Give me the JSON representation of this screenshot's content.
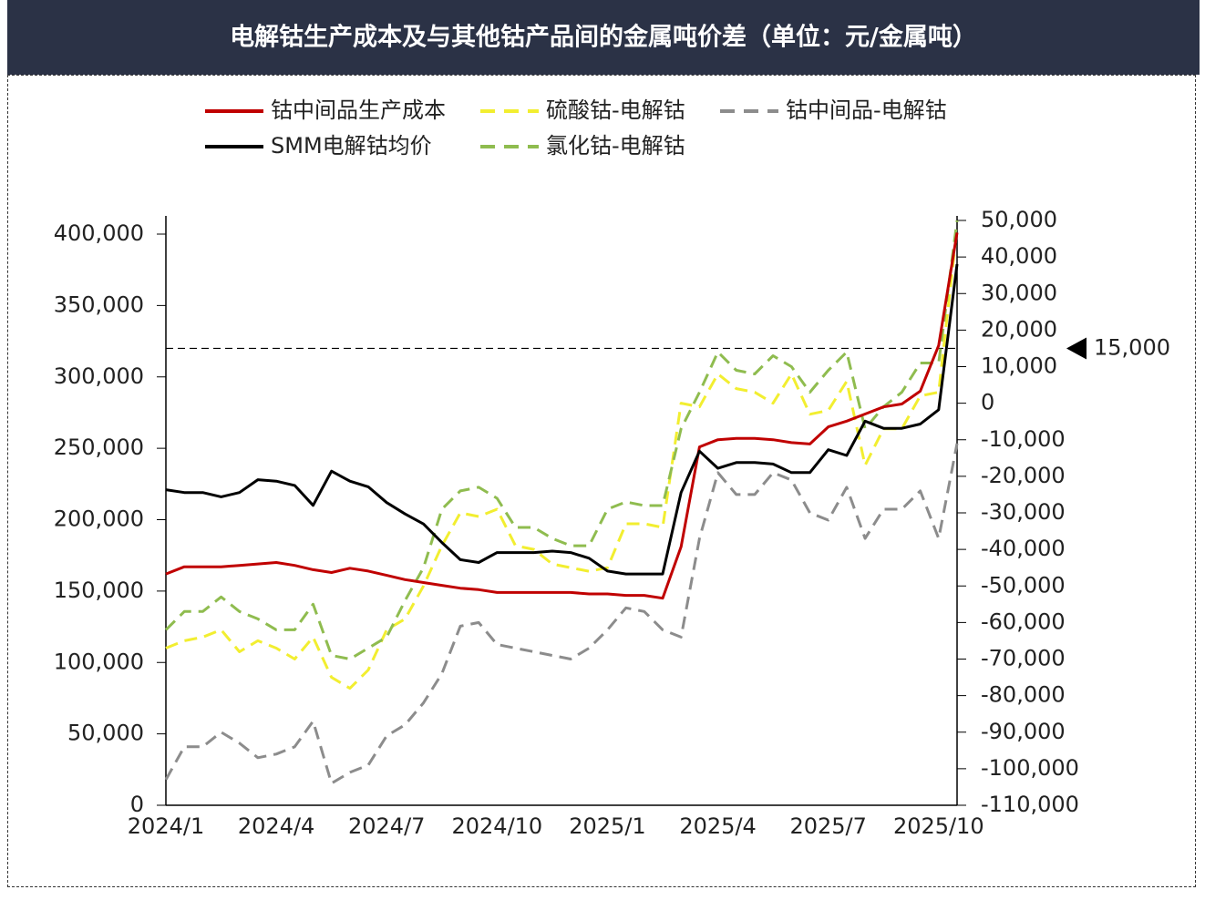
{
  "chart_data": {
    "type": "line",
    "title": "电解钴生产成本及与其他钴产品间的金属吨价差（单位：元/金属吨）",
    "categories": [
      "2024/1",
      null,
      null,
      null,
      null,
      null,
      "2024/4",
      null,
      null,
      null,
      null,
      null,
      "2024/7",
      null,
      null,
      null,
      null,
      null,
      "2024/10",
      null,
      null,
      null,
      null,
      null,
      "2025/1",
      null,
      null,
      null,
      null,
      null,
      "2025/4",
      null,
      null,
      null,
      null,
      null,
      "2025/7",
      null,
      null,
      null,
      null,
      null,
      "2025/10",
      null
    ],
    "series": [
      {
        "name": "钴中间品生产成本",
        "color": "#c00000",
        "dash": false,
        "axis": "y",
        "values": [
          162000,
          167000,
          167000,
          167000,
          168000,
          169000,
          170000,
          168000,
          165000,
          163000,
          166000,
          164000,
          161000,
          158000,
          156000,
          154000,
          152000,
          151000,
          149000,
          149000,
          149000,
          149000,
          149000,
          148000,
          148000,
          147000,
          147000,
          145000,
          181000,
          251000,
          256000,
          257000,
          257000,
          256000,
          254000,
          253000,
          265000,
          269000,
          274000,
          279000,
          281000,
          290000,
          322000,
          401000
        ]
      },
      {
        "name": "硫酸钴-电解钴",
        "color": "#f2ee30",
        "dash": true,
        "axis": "y2",
        "values": [
          -67000,
          -65000,
          -64000,
          -62000,
          -68000,
          -65000,
          -67000,
          -70000,
          -64000,
          -75000,
          -78000,
          -73000,
          -62000,
          -59000,
          -50000,
          -39000,
          -30000,
          -31000,
          -29000,
          -39000,
          -40000,
          -44000,
          -45000,
          -46000,
          -45000,
          -33000,
          -33000,
          -34000,
          0,
          -1000,
          8000,
          4000,
          3000,
          0,
          8000,
          -3000,
          -2000,
          6000,
          -17000,
          -7000,
          -7000,
          2000,
          3000,
          48000
        ]
      },
      {
        "name": "钴中间品-电解钴",
        "color": "#8c8c8c",
        "dash": true,
        "axis": "y2",
        "values": [
          -103000,
          -94000,
          -94000,
          -90000,
          -93000,
          -97000,
          -96000,
          -94000,
          -87000,
          -104000,
          -101000,
          -99000,
          -91000,
          -88000,
          -82000,
          -74000,
          -61000,
          -60000,
          -66000,
          -67000,
          -68000,
          -69000,
          -70000,
          -67000,
          -62000,
          -56000,
          -57000,
          -62000,
          -64000,
          -37000,
          -19000,
          -25000,
          -25000,
          -19000,
          -21000,
          -30000,
          -32000,
          -23000,
          -37000,
          -29000,
          -29000,
          -24000,
          -37000,
          -11000
        ]
      },
      {
        "name": "SMM电解钴均价",
        "color": "#000000",
        "dash": false,
        "axis": "y",
        "values": [
          221000,
          219000,
          219000,
          216000,
          219000,
          228000,
          227000,
          224000,
          210000,
          234000,
          227000,
          223000,
          212000,
          204000,
          197000,
          184000,
          172000,
          170000,
          177000,
          177000,
          177000,
          178000,
          177000,
          173000,
          164000,
          162000,
          162000,
          162000,
          219000,
          248000,
          236000,
          240000,
          240000,
          239000,
          233000,
          233000,
          249000,
          245000,
          269000,
          264000,
          264000,
          267000,
          277000,
          379000
        ]
      },
      {
        "name": "氯化钴-电解钴",
        "color": "#8fbc4f",
        "dash": true,
        "axis": "y2",
        "values": [
          -62000,
          -57000,
          -57000,
          -53000,
          -57000,
          -59000,
          -62000,
          -62000,
          -55000,
          -69000,
          -70000,
          -67000,
          -64000,
          -54000,
          -45000,
          -29000,
          -24000,
          -23000,
          -26000,
          -34000,
          -34000,
          -37000,
          -39000,
          -39000,
          -29000,
          -27000,
          -28000,
          -28000,
          -7000,
          3000,
          14000,
          9000,
          8000,
          13000,
          10000,
          3000,
          9000,
          14000,
          -7000,
          -1000,
          3000,
          11000,
          11000,
          50000
        ]
      }
    ],
    "ylim": [
      0,
      400000
    ],
    "yticks": [
      0,
      {
        "value": 50000,
        "label": "50,000"
      },
      {
        "value": 100000,
        "label": "100,000"
      },
      {
        "value": 150000,
        "label": "150,000"
      },
      {
        "value": 200000,
        "label": "200,000"
      },
      {
        "value": 250000,
        "label": "250,000"
      },
      {
        "value": 300000,
        "label": "300,000"
      },
      {
        "value": 350000,
        "label": "350,000"
      },
      {
        "value": 400000,
        "label": "400,000"
      }
    ],
    "y2lim": [
      -110000,
      50000
    ],
    "y2ticks": [
      {
        "value": 50000,
        "label": "50,000"
      },
      {
        "value": 40000,
        "label": "40,000"
      },
      {
        "value": 30000,
        "label": "30,000"
      },
      {
        "value": 20000,
        "label": "20,000"
      },
      {
        "value": 10000,
        "label": "10,000"
      },
      0,
      {
        "value": -10000,
        "label": "-10,000"
      },
      {
        "value": -20000,
        "label": "-20,000"
      },
      {
        "value": -30000,
        "label": "-30,000"
      },
      {
        "value": -40000,
        "label": "-40,000"
      },
      {
        "value": -50000,
        "label": "-50,000"
      },
      {
        "value": -60000,
        "label": "-60,000"
      },
      {
        "value": -70000,
        "label": "-70,000"
      },
      {
        "value": -80000,
        "label": "-80,000"
      },
      {
        "value": -90000,
        "label": "-90,000"
      },
      {
        "value": -100000,
        "label": "-100,000"
      },
      {
        "value": -110000,
        "label": "-110,000"
      }
    ],
    "reference_line": {
      "value": 15000,
      "label": "15,000",
      "axis": "y2"
    },
    "legend": "top",
    "grid": false
  }
}
